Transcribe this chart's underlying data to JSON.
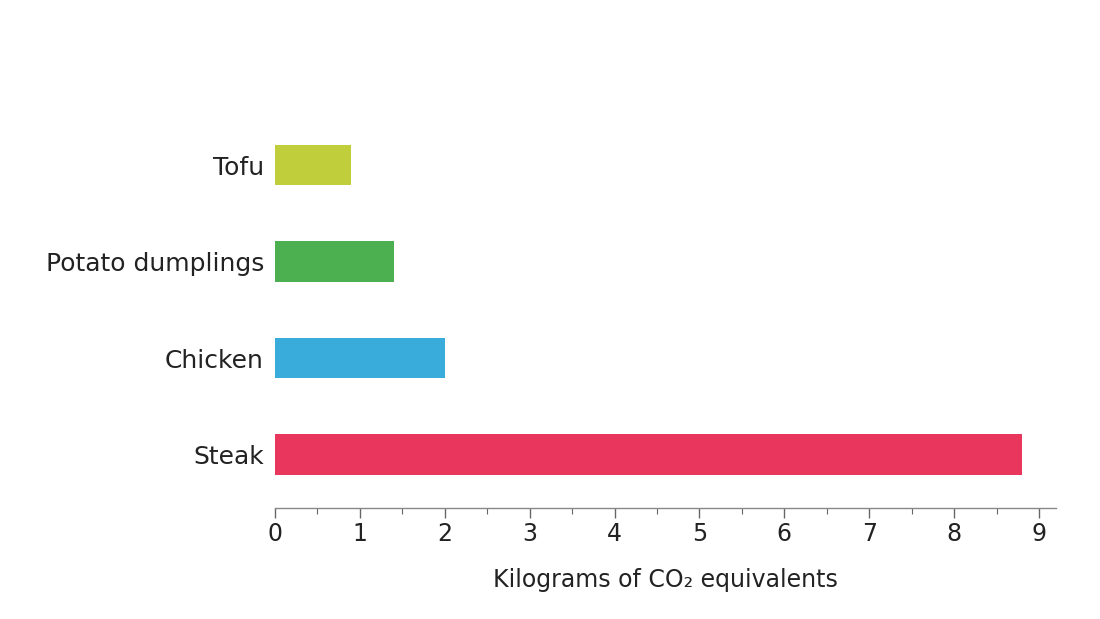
{
  "categories": [
    "Steak",
    "Chicken",
    "Potato dumplings",
    "Tofu"
  ],
  "values": [
    8.8,
    2.0,
    1.4,
    0.9
  ],
  "bar_colors": [
    "#E8365D",
    "#3AACDC",
    "#4CAF50",
    "#BFCE3A"
  ],
  "xlabel": "Kilograms of CO₂ equivalents",
  "xlim": [
    0,
    9.2
  ],
  "xticks": [
    0,
    1,
    2,
    3,
    4,
    5,
    6,
    7,
    8,
    9
  ],
  "background_color": "#ffffff",
  "label_fontsize": 18,
  "tick_fontsize": 17,
  "xlabel_fontsize": 17,
  "bar_height": 0.42
}
